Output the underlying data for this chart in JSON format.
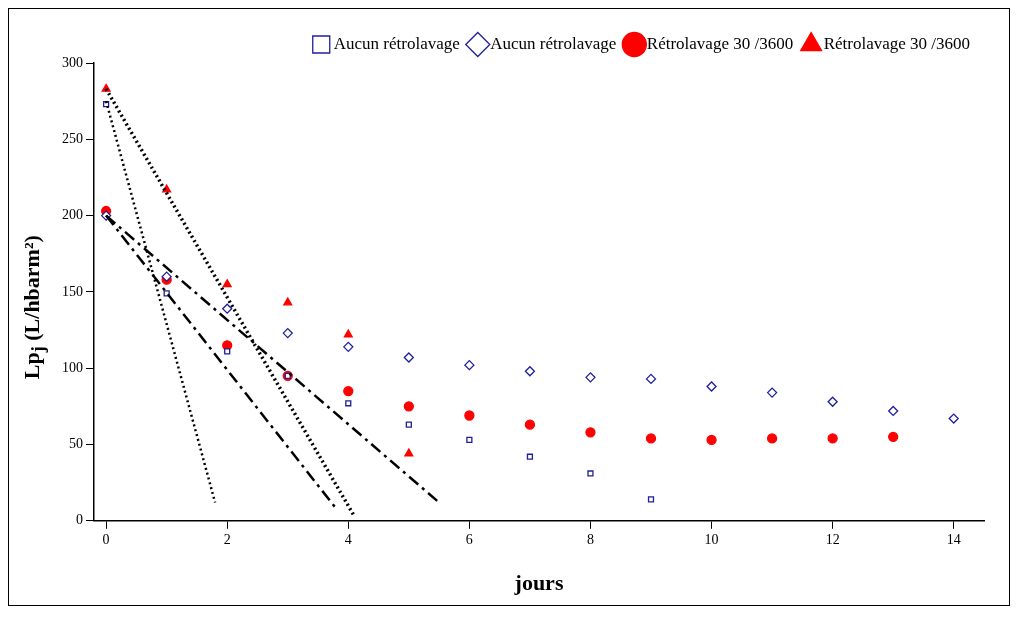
{
  "chart_data": {
    "type": "scatter",
    "xlabel": "jours",
    "ylabel": "Lp$_{j}$ (L/hbarm²)",
    "xlim": [
      -0.2,
      14.5
    ],
    "xticks": [
      0,
      2,
      4,
      6,
      8,
      10,
      12,
      14
    ],
    "ylim": [
      0,
      300
    ],
    "yticks": [
      0,
      50,
      100,
      150,
      200,
      250,
      300
    ],
    "grid": false,
    "legend": "top right",
    "series": [
      {
        "name": "Aucun rétrolavage",
        "color": "#1f1f9a",
        "marker": "square",
        "x": [
          0,
          1,
          2,
          3,
          4,
          5,
          6,
          7,
          8,
          9
        ],
        "values": [
          273,
          149,
          111,
          95,
          77,
          63,
          53,
          42,
          31,
          14
        ]
      },
      {
        "name": "Aucun rétrolavage",
        "color": "#1f1f9a",
        "marker": "diamond",
        "x": [
          0,
          1,
          2,
          3,
          4,
          5,
          6,
          7,
          8,
          9,
          10,
          11,
          12,
          13,
          14
        ],
        "values": [
          200,
          160,
          139,
          123,
          114,
          107,
          102,
          98,
          94,
          93,
          88,
          84,
          78,
          72,
          67
        ]
      },
      {
        "name": "Rétrolavage 30 /3600",
        "color": "#ff0000",
        "marker": "circle",
        "x": [
          0,
          1,
          2,
          3,
          4,
          5,
          6,
          7,
          8,
          9,
          10,
          11,
          12,
          13
        ],
        "values": [
          203,
          158,
          115,
          95,
          85,
          75,
          69,
          63,
          58,
          54,
          53,
          54,
          54,
          55
        ]
      },
      {
        "name": "Rétrolavage 30 /3600",
        "color": "#ff0000",
        "marker": "triangle",
        "x": [
          0,
          1,
          2,
          3,
          4,
          5
        ],
        "values": [
          283,
          217,
          155,
          143,
          122,
          44
        ]
      },
      {
        "type": "line",
        "color": "#000000",
        "line_style": "dotted",
        "x": [
          0,
          1.8
        ],
        "values": [
          275,
          12
        ]
      },
      {
        "type": "line",
        "color": "#000000",
        "line_style": "dotted",
        "x": [
          0,
          4.1
        ],
        "values": [
          283,
          3
        ]
      },
      {
        "type": "line",
        "color": "#000000",
        "line_style": "dashed",
        "x": [
          0,
          3.8
        ],
        "values": [
          200,
          8
        ]
      },
      {
        "type": "line",
        "color": "#000000",
        "line_style": "dashed",
        "x": [
          0,
          5.5
        ],
        "values": [
          200,
          12
        ]
      }
    ]
  }
}
